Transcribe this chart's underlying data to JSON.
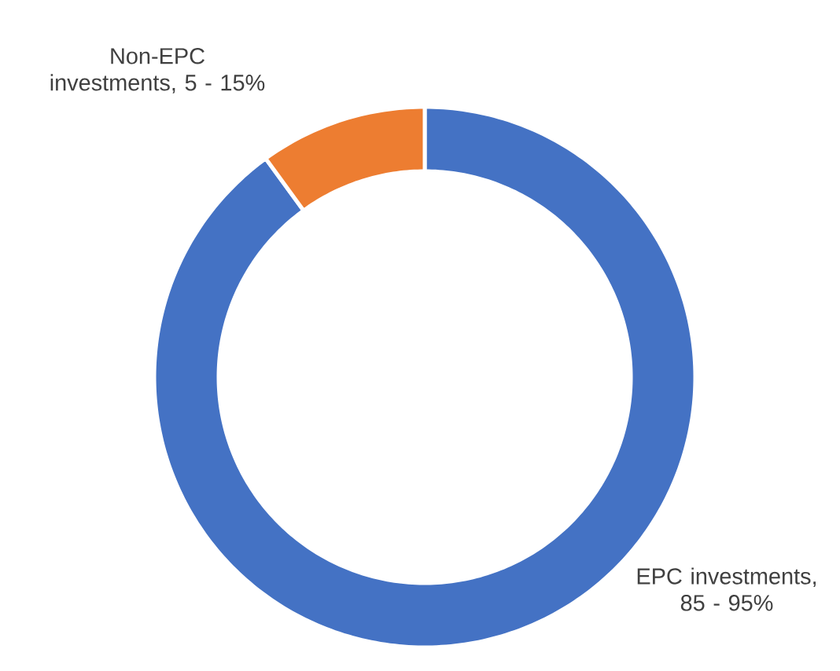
{
  "chart_data": {
    "type": "donut",
    "categories": [
      "EPC investments, 85 - 95%",
      "Non-EPC investments, 5 - 15%"
    ],
    "values": [
      90,
      10
    ],
    "colors": [
      "#4472c4",
      "#ed7d31"
    ]
  }
}
